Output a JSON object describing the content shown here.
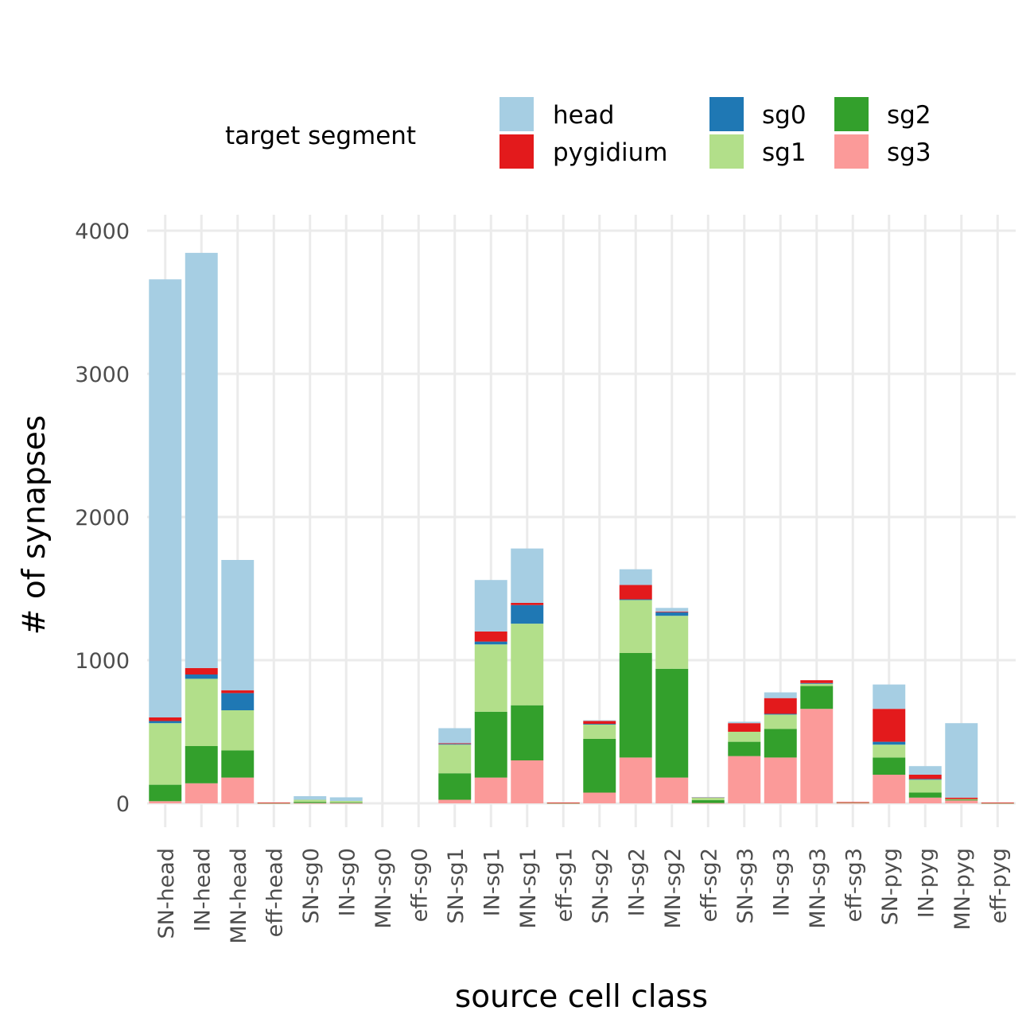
{
  "chart_data": {
    "type": "bar",
    "stacked": true,
    "xlabel": "source cell class",
    "ylabel": "# of synapses",
    "ylim": [
      -120,
      4100
    ],
    "y_ticks": [
      0,
      1000,
      2000,
      3000,
      4000
    ],
    "grid": true,
    "legend": {
      "title": "target segment",
      "position": "top",
      "entries": [
        {
          "name": "head",
          "color": "#A6CEE3"
        },
        {
          "name": "pygidium",
          "color": "#E31A1C"
        },
        {
          "name": "sg0",
          "color": "#1F78B4"
        },
        {
          "name": "sg1",
          "color": "#B2DF8A"
        },
        {
          "name": "sg2",
          "color": "#33A02C"
        },
        {
          "name": "sg3",
          "color": "#FB9A99"
        }
      ]
    },
    "categories": [
      "SN-head",
      "IN-head",
      "MN-head",
      "eff-head",
      "SN-sg0",
      "IN-sg0",
      "MN-sg0",
      "eff-sg0",
      "SN-sg1",
      "IN-sg1",
      "MN-sg1",
      "eff-sg1",
      "SN-sg2",
      "IN-sg2",
      "MN-sg2",
      "eff-sg2",
      "SN-sg3",
      "IN-sg3",
      "MN-sg3",
      "eff-sg3",
      "SN-pyg",
      "IN-pyg",
      "MN-pyg",
      "eff-pyg"
    ],
    "stack_order": [
      "sg3",
      "sg2",
      "sg1",
      "sg0",
      "pygidium",
      "head"
    ],
    "series": [
      {
        "name": "sg3",
        "color": "#FB9A99",
        "values": [
          15,
          140,
          180,
          2,
          2,
          2,
          0,
          0,
          25,
          180,
          300,
          2,
          75,
          320,
          180,
          2,
          330,
          320,
          660,
          2,
          200,
          40,
          20,
          2
        ]
      },
      {
        "name": "sg2",
        "color": "#33A02C",
        "values": [
          115,
          260,
          190,
          1,
          8,
          5,
          0,
          0,
          185,
          460,
          385,
          1,
          375,
          730,
          760,
          20,
          100,
          200,
          160,
          5,
          120,
          35,
          5,
          1
        ]
      },
      {
        "name": "sg1",
        "color": "#B2DF8A",
        "values": [
          430,
          470,
          280,
          1,
          15,
          10,
          0,
          0,
          200,
          470,
          570,
          1,
          100,
          370,
          370,
          20,
          70,
          100,
          15,
          1,
          90,
          90,
          5,
          1
        ]
      },
      {
        "name": "sg0",
        "color": "#1F78B4",
        "values": [
          15,
          30,
          120,
          0,
          0,
          0,
          0,
          0,
          5,
          20,
          130,
          0,
          5,
          5,
          25,
          0,
          0,
          5,
          5,
          0,
          20,
          5,
          0,
          0
        ]
      },
      {
        "name": "pygidium",
        "color": "#E31A1C",
        "values": [
          25,
          45,
          20,
          1,
          0,
          0,
          0,
          0,
          5,
          70,
          15,
          1,
          20,
          100,
          5,
          1,
          60,
          110,
          20,
          1,
          230,
          30,
          10,
          1
        ]
      },
      {
        "name": "head",
        "color": "#A6CEE3",
        "values": [
          3060,
          2900,
          910,
          0,
          25,
          25,
          0,
          0,
          105,
          360,
          380,
          0,
          5,
          110,
          25,
          1,
          10,
          40,
          0,
          0,
          170,
          60,
          520,
          0
        ]
      }
    ]
  }
}
